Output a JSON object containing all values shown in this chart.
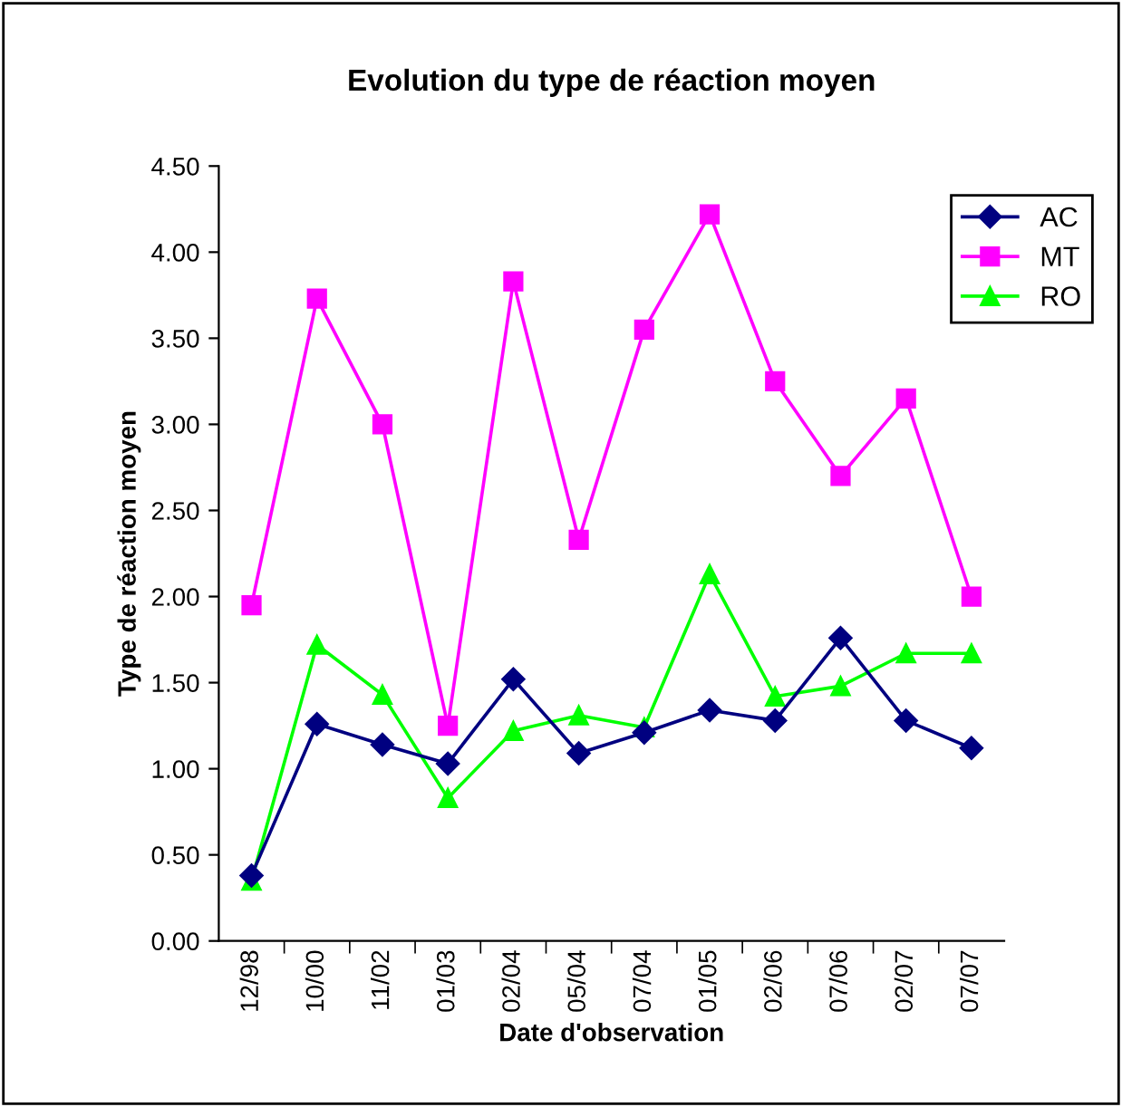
{
  "chart_data": {
    "type": "line",
    "title": "Evolution du type de réaction moyen",
    "xlabel": "Date d'observation",
    "ylabel": "Type de réaction moyen",
    "categories": [
      "12/98",
      "10/00",
      "11/02",
      "01/03",
      "02/04",
      "05/04",
      "07/04",
      "01/05",
      "02/06",
      "07/06",
      "02/07",
      "07/07"
    ],
    "series": [
      {
        "name": "AC",
        "color": "#000080",
        "marker": "diamond",
        "values": [
          0.38,
          1.26,
          1.14,
          1.03,
          1.52,
          1.09,
          1.21,
          1.34,
          1.28,
          1.76,
          1.28,
          1.12
        ]
      },
      {
        "name": "MT",
        "color": "#ff00ff",
        "marker": "square",
        "values": [
          1.95,
          3.73,
          3.0,
          1.25,
          3.83,
          2.33,
          3.55,
          4.22,
          3.25,
          2.7,
          3.15,
          2.0
        ]
      },
      {
        "name": "RO",
        "color": "#00ff00",
        "marker": "triangle",
        "values": [
          0.35,
          1.72,
          1.43,
          0.83,
          1.22,
          1.31,
          1.24,
          2.13,
          1.42,
          1.48,
          1.67,
          1.67
        ]
      }
    ],
    "ylim": [
      0,
      4.5
    ],
    "yticks": [
      {
        "value": 0,
        "label": "0.00"
      },
      {
        "value": 0.5,
        "label": "0.50"
      },
      {
        "value": 1,
        "label": "1.00"
      },
      {
        "value": 1.5,
        "label": "1.50"
      },
      {
        "value": 2,
        "label": "2.00"
      },
      {
        "value": 2.5,
        "label": "2.50"
      },
      {
        "value": 3,
        "label": "3.00"
      },
      {
        "value": 3.5,
        "label": "3.50"
      },
      {
        "value": 4,
        "label": "4.00"
      },
      {
        "value": 4.5,
        "label": "4.50"
      }
    ],
    "grid": false,
    "legend": "top right"
  }
}
